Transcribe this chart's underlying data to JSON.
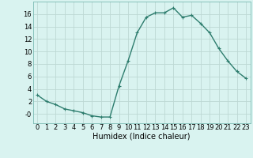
{
  "x": [
    0,
    1,
    2,
    3,
    4,
    5,
    6,
    7,
    8,
    9,
    10,
    11,
    12,
    13,
    14,
    15,
    16,
    17,
    18,
    19,
    20,
    21,
    22,
    23
  ],
  "y": [
    3,
    2,
    1.5,
    0.8,
    0.5,
    0.2,
    -0.3,
    -0.5,
    -0.5,
    4.5,
    8.5,
    13,
    15.5,
    16.2,
    16.2,
    17,
    15.5,
    15.8,
    14.5,
    13,
    10.5,
    8.5,
    6.8,
    5.7
  ],
  "line_color": "#2E7D6E",
  "marker_style": "+",
  "marker_size": 3,
  "bg_color": "#D9F3F0",
  "grid_color": "#BDD8D4",
  "xlabel": "Humidex (Indice chaleur)",
  "ylim": [
    -1.5,
    18
  ],
  "xlim": [
    -0.5,
    23.5
  ],
  "yticks": [
    0,
    2,
    4,
    6,
    8,
    10,
    12,
    14,
    16
  ],
  "ytick_labels": [
    "-0",
    "2",
    "4",
    "6",
    "8",
    "10",
    "12",
    "14",
    "16"
  ],
  "xticks": [
    0,
    1,
    2,
    3,
    4,
    5,
    6,
    7,
    8,
    9,
    10,
    11,
    12,
    13,
    14,
    15,
    16,
    17,
    18,
    19,
    20,
    21,
    22,
    23
  ],
  "line_width": 1.0,
  "tick_font_size": 6,
  "xlabel_fontsize": 7
}
